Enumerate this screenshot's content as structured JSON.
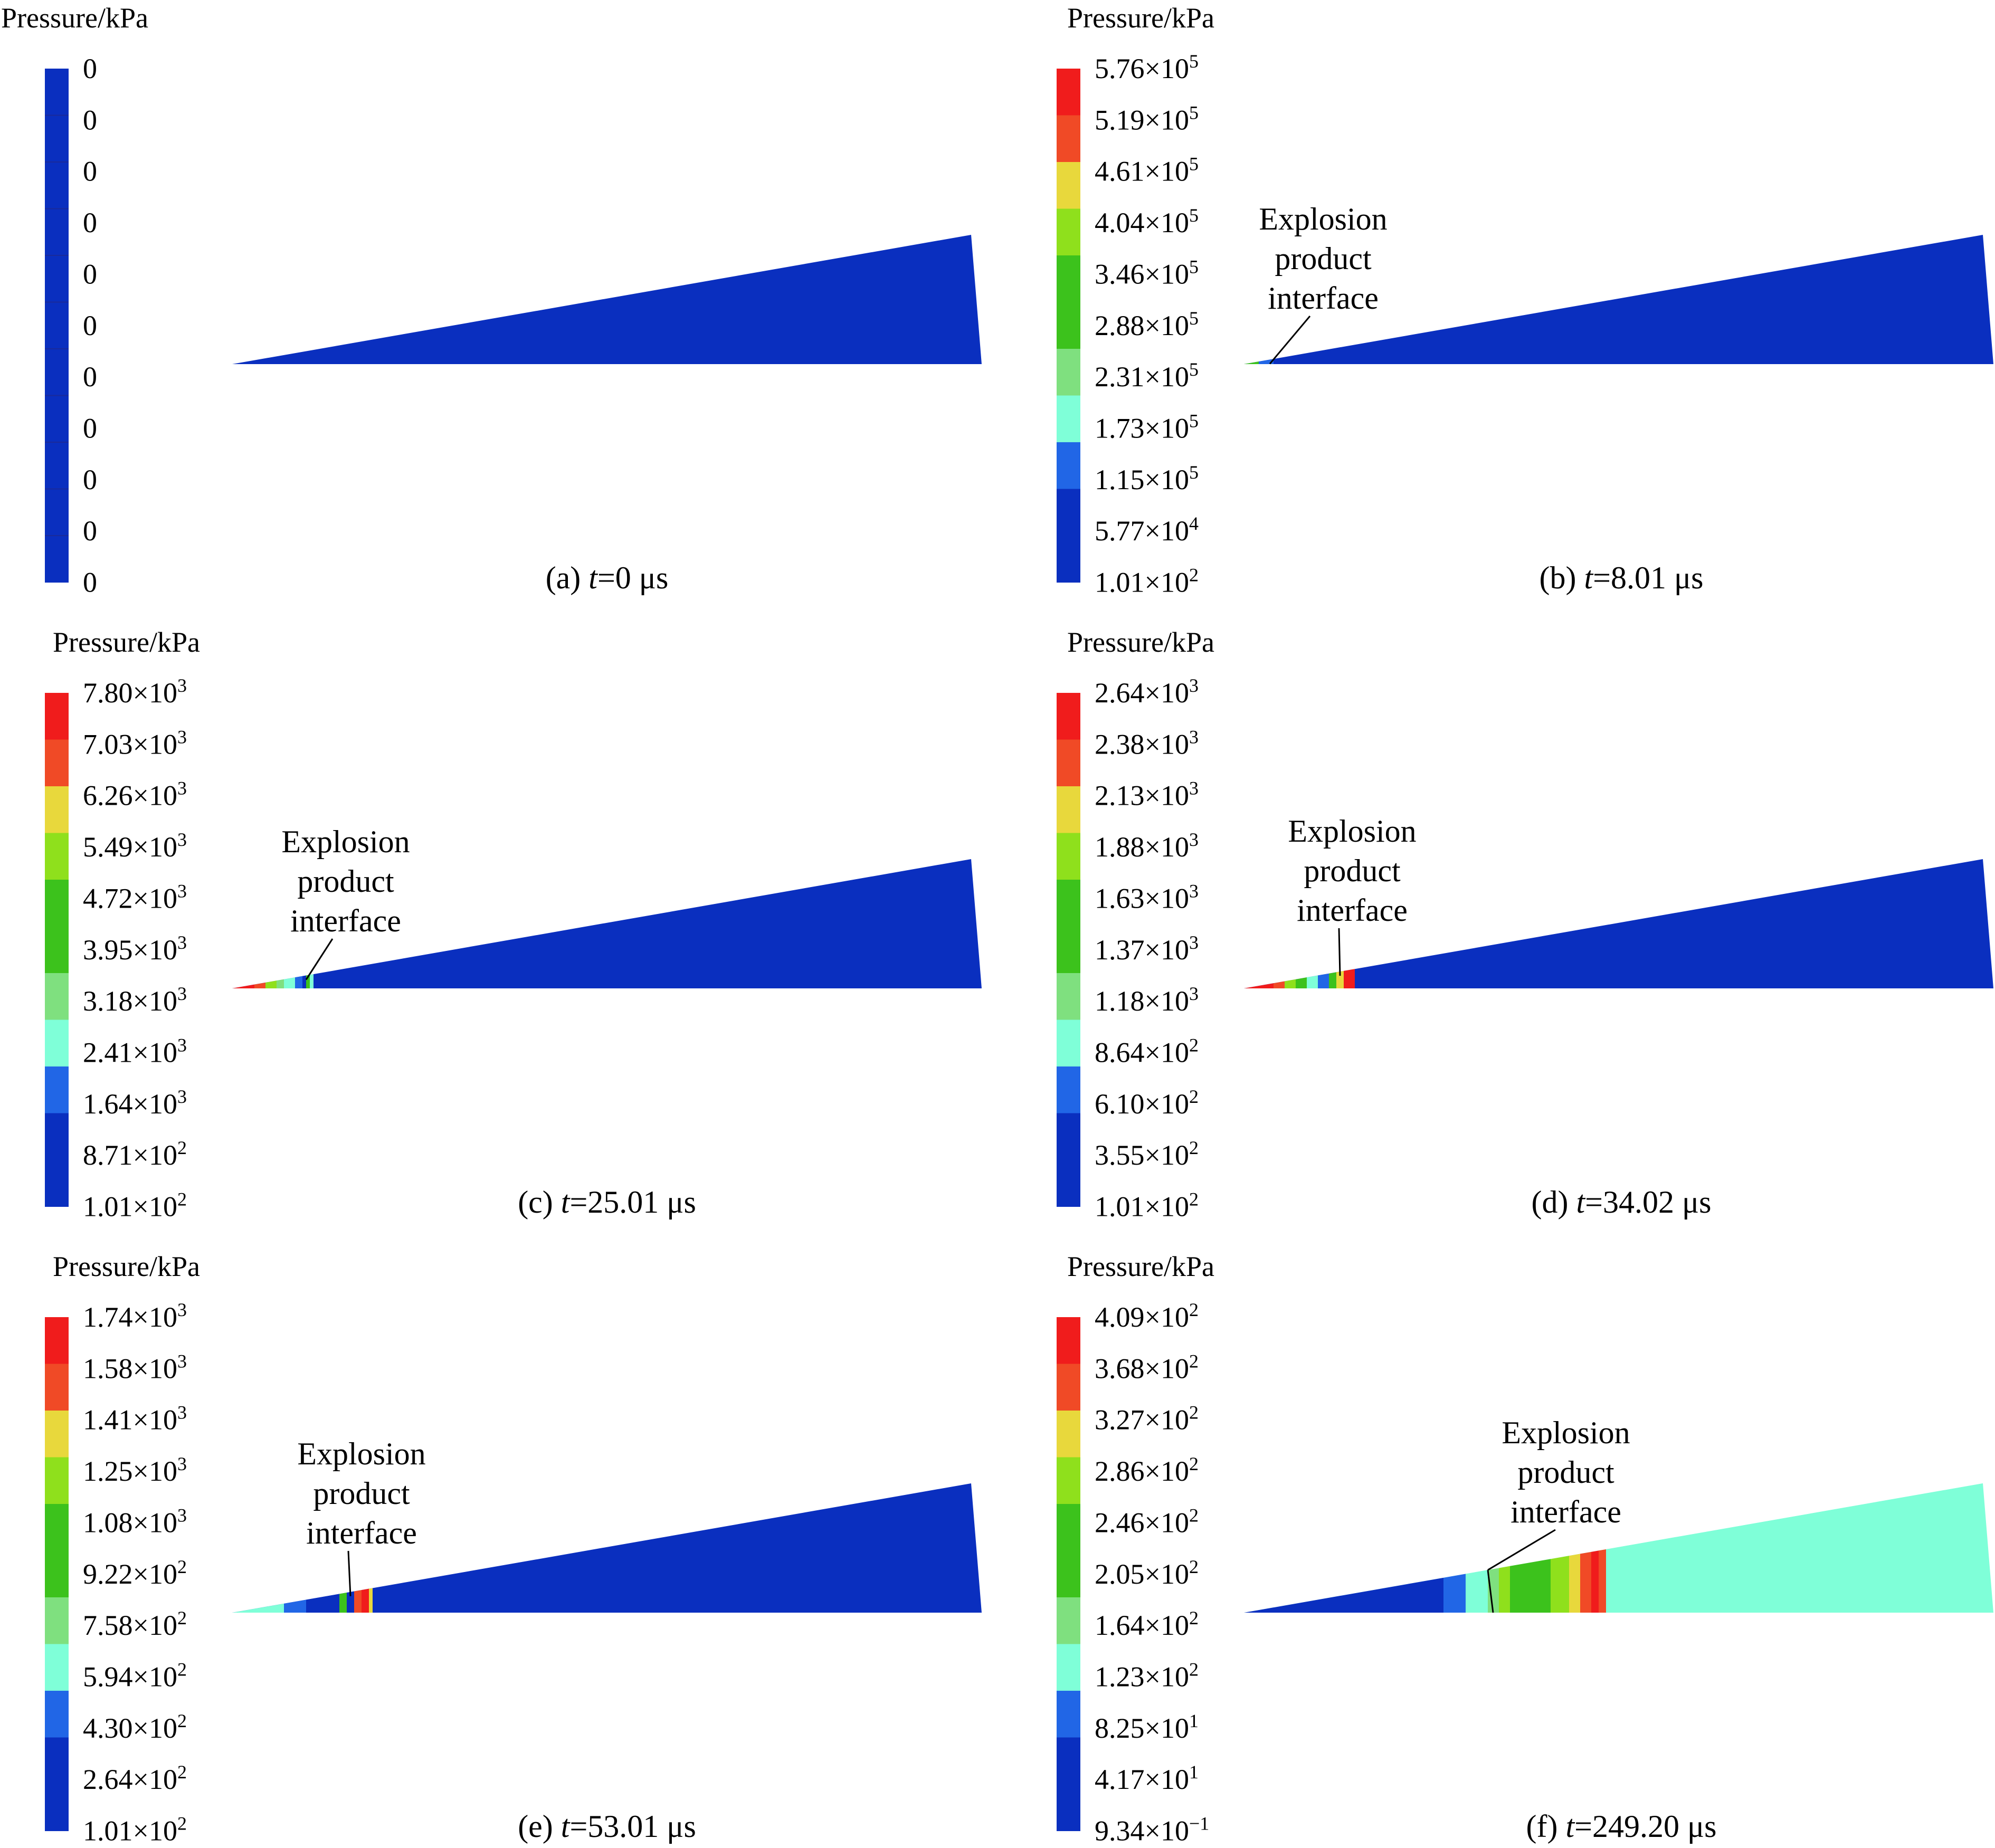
{
  "legend_title": "Pressure/kPa",
  "annotation_lines": [
    "Explosion",
    "product",
    "interface"
  ],
  "palette": [
    "#0a2fbf",
    "#2166e6",
    "#7fffd8",
    "#7fe07f",
    "#3cc21c",
    "#8fe01c",
    "#e8d83c",
    "#f04a26",
    "#f01c1c"
  ],
  "panels": [
    {
      "id": "a",
      "caption_prefix": "(a) ",
      "caption_var": "t",
      "caption_value": "=0 μs",
      "legend": [
        {
          "m": "0",
          "e": ""
        },
        {
          "m": "0",
          "e": ""
        },
        {
          "m": "0",
          "e": ""
        },
        {
          "m": "0",
          "e": ""
        },
        {
          "m": "0",
          "e": ""
        },
        {
          "m": "0",
          "e": ""
        },
        {
          "m": "0",
          "e": ""
        },
        {
          "m": "0",
          "e": ""
        },
        {
          "m": "0",
          "e": ""
        },
        {
          "m": "0",
          "e": ""
        },
        {
          "m": "0",
          "e": ""
        }
      ],
      "uniform_color": "#0a2fbf",
      "annotation": false,
      "bands": [],
      "field": "#0a2fbf"
    },
    {
      "id": "b",
      "caption_prefix": "(b) ",
      "caption_var": "t",
      "caption_value": "=8.01 μs",
      "legend": [
        {
          "m": "5.76×10",
          "e": "5"
        },
        {
          "m": "5.19×10",
          "e": "5"
        },
        {
          "m": "4.61×10",
          "e": "5"
        },
        {
          "m": "4.04×10",
          "e": "5"
        },
        {
          "m": "3.46×10",
          "e": "5"
        },
        {
          "m": "2.88×10",
          "e": "5"
        },
        {
          "m": "2.31×10",
          "e": "5"
        },
        {
          "m": "1.73×10",
          "e": "5"
        },
        {
          "m": "1.15×10",
          "e": "5"
        },
        {
          "m": "5.77×10",
          "e": "4"
        },
        {
          "m": "1.01×10",
          "e": "2"
        }
      ],
      "uniform_color": "",
      "annotation": true,
      "bands": [
        {
          "from": 0.0,
          "to": 0.02,
          "color": "#3cc21c"
        },
        {
          "from": 0.02,
          "to": 0.04,
          "color": "#2166e6"
        }
      ],
      "field": "#0a2fbf"
    },
    {
      "id": "c",
      "caption_prefix": "(c) ",
      "caption_var": "t",
      "caption_value": "=25.01 μs",
      "legend": [
        {
          "m": "7.80×10",
          "e": "3"
        },
        {
          "m": "7.03×10",
          "e": "3"
        },
        {
          "m": "6.26×10",
          "e": "3"
        },
        {
          "m": "5.49×10",
          "e": "3"
        },
        {
          "m": "4.72×10",
          "e": "3"
        },
        {
          "m": "3.95×10",
          "e": "3"
        },
        {
          "m": "3.18×10",
          "e": "3"
        },
        {
          "m": "2.41×10",
          "e": "3"
        },
        {
          "m": "1.64×10",
          "e": "3"
        },
        {
          "m": "8.71×10",
          "e": "2"
        },
        {
          "m": "1.01×10",
          "e": "2"
        }
      ],
      "uniform_color": "",
      "annotation": true,
      "bands": [
        {
          "from": 0.0,
          "to": 0.03,
          "color": "#f01c1c"
        },
        {
          "from": 0.03,
          "to": 0.045,
          "color": "#f04a26"
        },
        {
          "from": 0.045,
          "to": 0.06,
          "color": "#8fe01c"
        },
        {
          "from": 0.06,
          "to": 0.07,
          "color": "#7fe07f"
        },
        {
          "from": 0.07,
          "to": 0.085,
          "color": "#7fffd8"
        },
        {
          "from": 0.085,
          "to": 0.095,
          "color": "#2166e6"
        },
        {
          "from": 0.095,
          "to": 0.1,
          "color": "#0a2fbf"
        },
        {
          "from": 0.1,
          "to": 0.105,
          "color": "#3cc21c"
        },
        {
          "from": 0.105,
          "to": 0.11,
          "color": "#7fffd8"
        }
      ],
      "field": "#0a2fbf"
    },
    {
      "id": "d",
      "caption_prefix": "(d) ",
      "caption_var": "t",
      "caption_value": "=34.02 μs",
      "legend": [
        {
          "m": "2.64×10",
          "e": "3"
        },
        {
          "m": "2.38×10",
          "e": "3"
        },
        {
          "m": "2.13×10",
          "e": "3"
        },
        {
          "m": "1.88×10",
          "e": "3"
        },
        {
          "m": "1.63×10",
          "e": "3"
        },
        {
          "m": "1.37×10",
          "e": "3"
        },
        {
          "m": "1.18×10",
          "e": "3"
        },
        {
          "m": "8.64×10",
          "e": "2"
        },
        {
          "m": "6.10×10",
          "e": "2"
        },
        {
          "m": "3.55×10",
          "e": "2"
        },
        {
          "m": "1.01×10",
          "e": "2"
        }
      ],
      "uniform_color": "",
      "annotation": true,
      "bands": [
        {
          "from": 0.0,
          "to": 0.04,
          "color": "#f01c1c"
        },
        {
          "from": 0.04,
          "to": 0.055,
          "color": "#f04a26"
        },
        {
          "from": 0.055,
          "to": 0.07,
          "color": "#8fe01c"
        },
        {
          "from": 0.07,
          "to": 0.085,
          "color": "#3cc21c"
        },
        {
          "from": 0.085,
          "to": 0.1,
          "color": "#7fffd8"
        },
        {
          "from": 0.1,
          "to": 0.115,
          "color": "#2166e6"
        },
        {
          "from": 0.115,
          "to": 0.125,
          "color": "#3cc21c"
        },
        {
          "from": 0.125,
          "to": 0.135,
          "color": "#e8d83c"
        },
        {
          "from": 0.135,
          "to": 0.15,
          "color": "#f01c1c"
        }
      ],
      "field": "#0a2fbf"
    },
    {
      "id": "e",
      "caption_prefix": "(e) ",
      "caption_var": "t",
      "caption_value": "=53.01 μs",
      "legend": [
        {
          "m": "1.74×10",
          "e": "3"
        },
        {
          "m": "1.58×10",
          "e": "3"
        },
        {
          "m": "1.41×10",
          "e": "3"
        },
        {
          "m": "1.25×10",
          "e": "3"
        },
        {
          "m": "1.08×10",
          "e": "3"
        },
        {
          "m": "9.22×10",
          "e": "2"
        },
        {
          "m": "7.58×10",
          "e": "2"
        },
        {
          "m": "5.94×10",
          "e": "2"
        },
        {
          "m": "4.30×10",
          "e": "2"
        },
        {
          "m": "2.64×10",
          "e": "2"
        },
        {
          "m": "1.01×10",
          "e": "2"
        }
      ],
      "uniform_color": "",
      "annotation": true,
      "bands": [
        {
          "from": 0.0,
          "to": 0.07,
          "color": "#7fffd8"
        },
        {
          "from": 0.07,
          "to": 0.1,
          "color": "#2166e6"
        },
        {
          "from": 0.1,
          "to": 0.145,
          "color": "#0a2fbf"
        },
        {
          "from": 0.145,
          "to": 0.155,
          "color": "#3cc21c"
        },
        {
          "from": 0.155,
          "to": 0.165,
          "color": "#0a2fbf"
        },
        {
          "from": 0.165,
          "to": 0.175,
          "color": "#f04a26"
        },
        {
          "from": 0.175,
          "to": 0.185,
          "color": "#f01c1c"
        },
        {
          "from": 0.185,
          "to": 0.19,
          "color": "#e8d83c"
        }
      ],
      "field": "#0a2fbf"
    },
    {
      "id": "f",
      "caption_prefix": "(f) ",
      "caption_var": "t",
      "caption_value": "=249.20 μs",
      "legend": [
        {
          "m": "4.09×10",
          "e": "2"
        },
        {
          "m": "3.68×10",
          "e": "2"
        },
        {
          "m": "3.27×10",
          "e": "2"
        },
        {
          "m": "2.86×10",
          "e": "2"
        },
        {
          "m": "2.46×10",
          "e": "2"
        },
        {
          "m": "2.05×10",
          "e": "2"
        },
        {
          "m": "1.64×10",
          "e": "2"
        },
        {
          "m": "1.23×10",
          "e": "2"
        },
        {
          "m": "8.25×10",
          "e": "1"
        },
        {
          "m": "4.17×10",
          "e": "1"
        },
        {
          "m": "9.34×10",
          "e": "−1"
        }
      ],
      "uniform_color": "",
      "annotation": true,
      "bands": [
        {
          "from": 0.0,
          "to": 0.27,
          "color": "#0a2fbf"
        },
        {
          "from": 0.27,
          "to": 0.3,
          "color": "#2166e6"
        },
        {
          "from": 0.3,
          "to": 0.33,
          "color": "#7fffd8"
        },
        {
          "from": 0.33,
          "to": 0.345,
          "color": "#7fe07f"
        },
        {
          "from": 0.345,
          "to": 0.36,
          "color": "#8fe01c"
        },
        {
          "from": 0.36,
          "to": 0.415,
          "color": "#3cc21c"
        },
        {
          "from": 0.415,
          "to": 0.44,
          "color": "#8fe01c"
        },
        {
          "from": 0.44,
          "to": 0.455,
          "color": "#e8d83c"
        },
        {
          "from": 0.455,
          "to": 0.47,
          "color": "#f04a26"
        },
        {
          "from": 0.47,
          "to": 0.48,
          "color": "#f01c1c"
        },
        {
          "from": 0.48,
          "to": 0.49,
          "color": "#f04a26"
        },
        {
          "from": 0.49,
          "to": 1.0,
          "color": "#7fffd8"
        }
      ],
      "field": "#7fffd8"
    }
  ]
}
